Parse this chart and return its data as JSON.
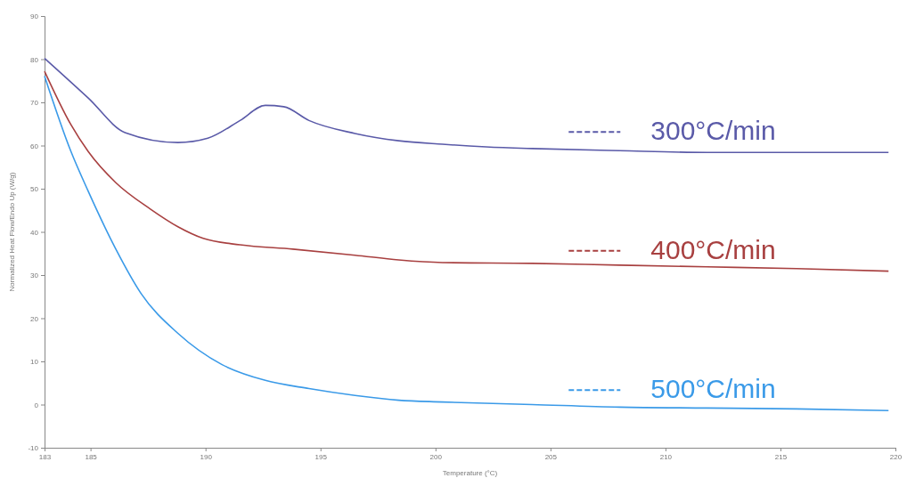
{
  "chart_data": {
    "type": "line",
    "xlabel": "Temperature (°C)",
    "ylabel": "Normalized Heat Flow/Endo Up (W/g)",
    "xlim": [
      183,
      220
    ],
    "xticks": [
      183,
      185,
      190,
      195,
      200,
      205,
      210,
      215,
      220
    ],
    "ylim": [
      -10,
      90
    ],
    "yticks": [
      -10,
      0,
      10,
      20,
      30,
      40,
      50,
      60,
      70,
      80,
      90
    ],
    "grid": false,
    "legend": "right",
    "marker": "none",
    "line_style": "solid",
    "series": [
      {
        "name": "300°C/min",
        "color": "#5a5aa8",
        "x": [
          183,
          184.9,
          186.5,
          188.8,
          190.1,
          191.5,
          192.6,
          193.4,
          194.5,
          196.5,
          198.4,
          200.3,
          202.2,
          204.2,
          208,
          211.8,
          219.7
        ],
        "values": [
          80.2,
          71,
          63,
          60.7,
          61.7,
          65.8,
          69.3,
          69,
          65.8,
          62.8,
          61.1,
          60.3,
          59.7,
          59.3,
          58.8,
          58.4,
          58.4
        ]
      },
      {
        "name": "400°C/min",
        "color": "#a84040",
        "x": [
          183,
          184.15,
          184.9,
          186.1,
          187.6,
          188.8,
          189.9,
          191.5,
          193.8,
          196.5,
          198.4,
          200.3,
          204.2,
          208,
          211.8,
          215.7,
          219.7
        ],
        "values": [
          77.2,
          64.8,
          58.6,
          51.4,
          45.3,
          41.2,
          38.5,
          37,
          36,
          34.6,
          33.5,
          32.9,
          32.7,
          32.3,
          31.9,
          31.5,
          30.9
        ]
      },
      {
        "name": "500°C/min",
        "color": "#3a9ae8",
        "x": [
          183,
          184.15,
          184.9,
          186.1,
          187.2,
          188.8,
          190.7,
          192.6,
          194.5,
          196.5,
          198.4,
          200.3,
          204.2,
          208,
          211.8,
          215.7,
          219.7
        ],
        "values": [
          76.1,
          58.6,
          49.4,
          36,
          25.7,
          16.5,
          9.3,
          5.6,
          3.7,
          2.1,
          1,
          0.6,
          0,
          -0.6,
          -0.8,
          -1,
          -1.4
        ]
      }
    ]
  }
}
